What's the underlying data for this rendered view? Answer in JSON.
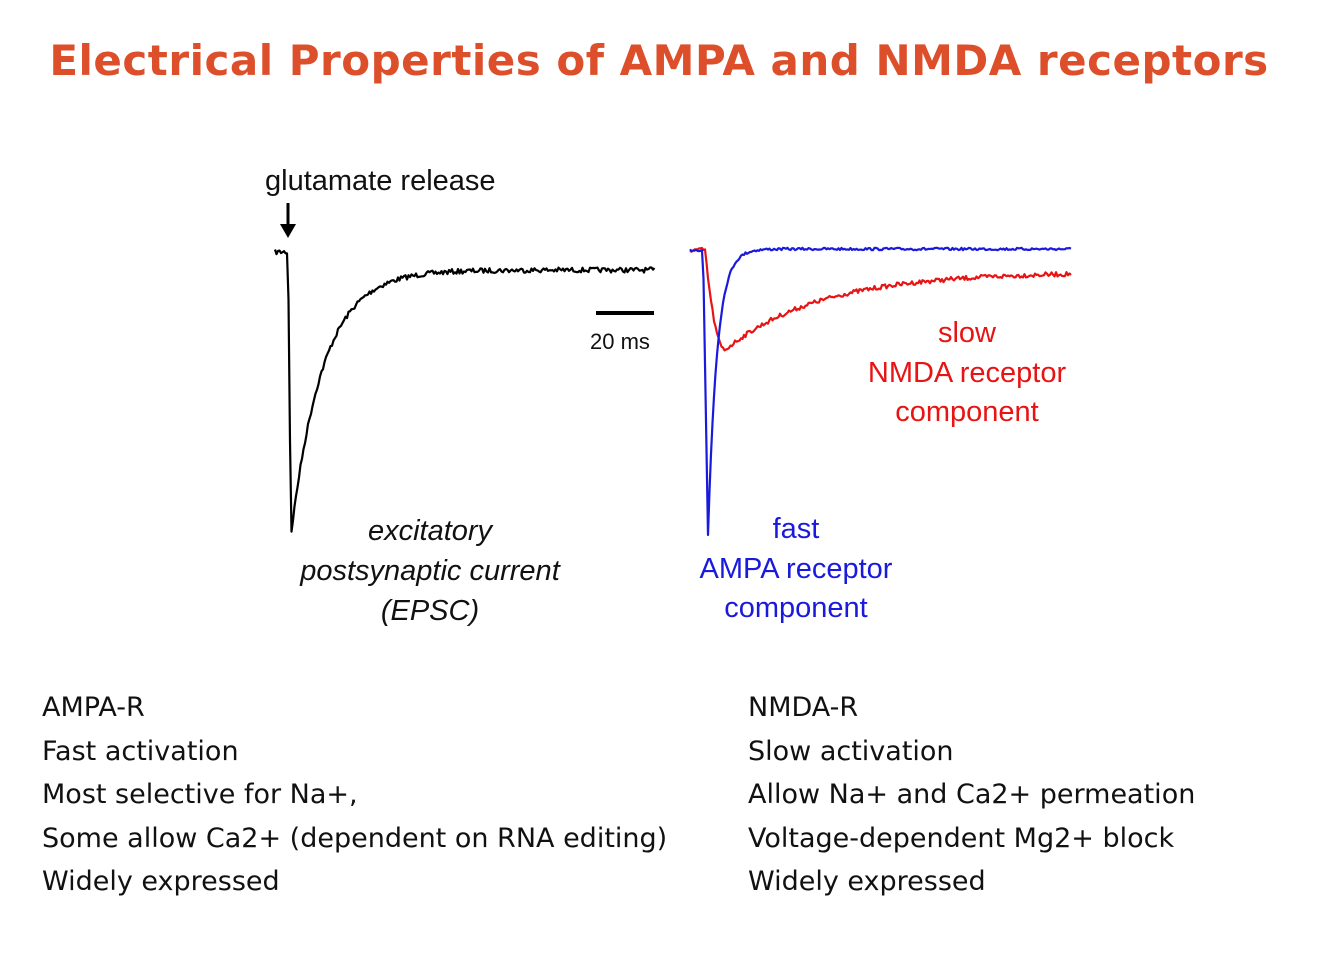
{
  "title": "Electrical Properties of AMPA and NMDA receptors",
  "figure": {
    "stimulus_label": "glutamate release",
    "scale_bar_label": "20 ms",
    "epsc_label_lines": [
      "excitatory",
      "postsynaptic current",
      "(EPSC)"
    ],
    "nmda_label_lines": [
      "slow",
      "NMDA receptor",
      "component"
    ],
    "ampa_label_lines": [
      "fast",
      "AMPA receptor",
      "component"
    ],
    "colors": {
      "epsc": "#000000",
      "ampa": "#1a1adc",
      "nmda": "#e81414",
      "title": "#dc4f2a"
    }
  },
  "ampa_column": {
    "lines": [
      "AMPA-R",
      "Fast activation",
      "Most selective for Na+,",
      "Some allow Ca2+ (dependent on RNA editing)",
      "Widely expressed"
    ]
  },
  "nmda_column": {
    "lines": [
      "NMDA-R",
      "Slow activation",
      "Allow Na+ and Ca2+ permeation",
      "Voltage-dependent Mg2+ block",
      "Widely expressed"
    ]
  }
}
